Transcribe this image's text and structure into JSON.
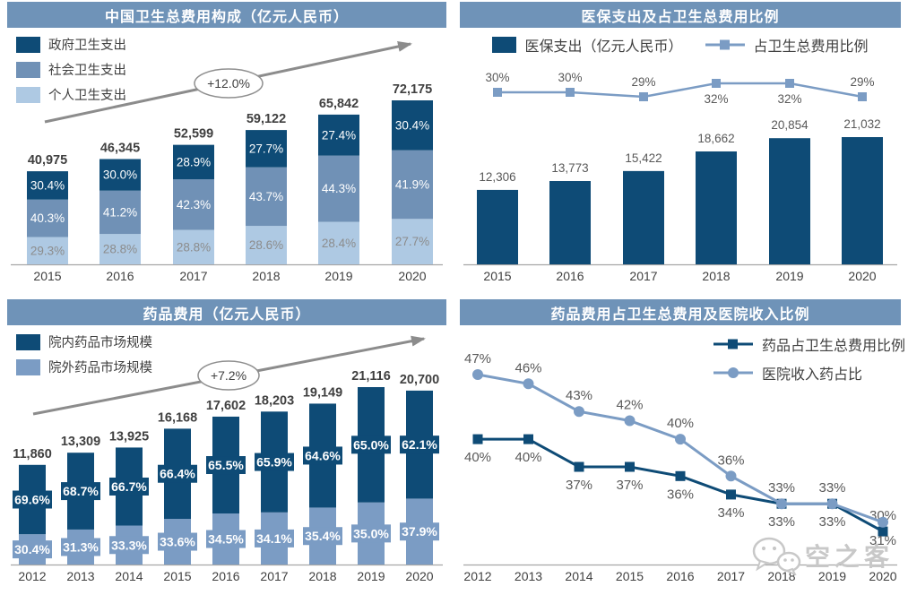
{
  "colors": {
    "navy": "#0e4b76",
    "mid": "#7091b6",
    "light": "#aec9e3",
    "steel": "#7b9cc4",
    "titlebar": "#6f93b8",
    "gray_text": "#595959",
    "dark_text": "#404040",
    "light_pct_text": "#8c8c8c",
    "axis": "#a6a6a6",
    "arrow": "#8c8c8c",
    "watermark": "#c8c8c8"
  },
  "watermark": {
    "text": "空之客",
    "icon": "wechat-chat-bubbles-icon"
  },
  "panels": [
    {
      "id": "health-expenditure-composition",
      "title": "中国卫生总费用构成（亿元人民币）",
      "legend": [
        {
          "label": "政府卫生支出",
          "marker": "swatch",
          "color_key": "navy"
        },
        {
          "label": "社会卫生支出",
          "marker": "swatch",
          "color_key": "mid"
        },
        {
          "label": "个人卫生支出",
          "marker": "swatch",
          "color_key": "light"
        }
      ],
      "chart_data": {
        "type": "bar",
        "stacked": true,
        "unit": "亿元人民币",
        "categories": [
          "2015",
          "2016",
          "2017",
          "2018",
          "2019",
          "2020"
        ],
        "totals": [
          40975,
          46345,
          52599,
          59122,
          65842,
          72175
        ],
        "series": [
          {
            "name": "政府卫生支出",
            "color_key": "navy",
            "pct": [
              30.4,
              30.0,
              28.9,
              27.7,
              27.4,
              30.4
            ]
          },
          {
            "name": "社会卫生支出",
            "color_key": "mid",
            "pct": [
              40.3,
              41.2,
              42.3,
              43.7,
              44.3,
              41.9
            ]
          },
          {
            "name": "个人卫生支出",
            "color_key": "light",
            "pct": [
              29.3,
              28.8,
              28.8,
              28.6,
              28.4,
              27.7
            ]
          }
        ],
        "growth_annotation": "+12.0%",
        "legend_position": "top-left",
        "grid": false
      }
    },
    {
      "id": "medical-insurance-expenditure",
      "title": "医保支出及占卫生总费用比例",
      "legend": [
        {
          "label": "医保支出（亿元人民币）",
          "marker": "swatch",
          "color_key": "navy"
        },
        {
          "label": "占卫生总费用比例",
          "marker": "line-square",
          "color_key": "steel"
        }
      ],
      "chart_data": {
        "type": "bar+line",
        "categories": [
          "2015",
          "2016",
          "2017",
          "2018",
          "2019",
          "2020"
        ],
        "bars": {
          "name": "医保支出（亿元人民币）",
          "color_key": "navy",
          "values": [
            12306,
            13773,
            15422,
            18662,
            20854,
            21032
          ]
        },
        "line": {
          "name": "占卫生总费用比例",
          "color_key": "steel",
          "values": [
            30,
            30,
            29,
            32,
            32,
            29
          ],
          "label_sides": [
            "above",
            "above",
            "above",
            "below",
            "below",
            "above"
          ]
        },
        "legend_position": "top-center",
        "grid": false
      }
    },
    {
      "id": "drug-expenses",
      "title": "药品费用（亿元人民币）",
      "legend": [
        {
          "label": "院内药品市场规模",
          "marker": "swatch",
          "color_key": "navy"
        },
        {
          "label": "院外药品市场规模",
          "marker": "swatch",
          "color_key": "steel"
        }
      ],
      "chart_data": {
        "type": "bar",
        "stacked": true,
        "unit": "亿元人民币",
        "categories": [
          "2012",
          "2013",
          "2014",
          "2015",
          "2016",
          "2017",
          "2018",
          "2019",
          "2020"
        ],
        "totals": [
          11860,
          13309,
          13925,
          16168,
          17602,
          18203,
          19149,
          21116,
          20700
        ],
        "series": [
          {
            "name": "院内药品市场规模",
            "color_key": "navy",
            "pct": [
              69.6,
              68.7,
              66.7,
              66.4,
              65.5,
              65.9,
              64.6,
              65.0,
              62.1
            ]
          },
          {
            "name": "院外药品市场规模",
            "color_key": "steel",
            "pct": [
              30.4,
              31.3,
              33.3,
              33.6,
              34.5,
              34.1,
              35.4,
              35.0,
              37.9
            ]
          }
        ],
        "growth_annotation": "+7.2%",
        "legend_position": "top-left",
        "grid": false
      }
    },
    {
      "id": "drug-share-ratios",
      "title": "药品费用占卫生总费用及医院收入比例",
      "legend": [
        {
          "label": "药品占卫生总费用比例",
          "marker": "line-square",
          "color_key": "navy"
        },
        {
          "label": "医院收入药占比",
          "marker": "line-circle",
          "color_key": "steel"
        }
      ],
      "chart_data": {
        "type": "line",
        "categories": [
          "2012",
          "2013",
          "2014",
          "2015",
          "2016",
          "2017",
          "2018",
          "2019",
          "2020"
        ],
        "series": [
          {
            "name": "药品占卫生总费用比例",
            "color_key": "navy",
            "marker": "square",
            "values": [
              40,
              40,
              37,
              37,
              36,
              34,
              33,
              33,
              30
            ],
            "label_sides": [
              "below",
              "below",
              "below",
              "below",
              "below",
              "below",
              "below",
              "above",
              "above"
            ]
          },
          {
            "name": "医院收入药占比",
            "color_key": "steel",
            "marker": "circle",
            "values": [
              47,
              46,
              43,
              42,
              40,
              36,
              33,
              33,
              31
            ],
            "label_sides": [
              "above",
              "above",
              "above",
              "above",
              "above",
              "above",
              "above",
              "below",
              "below"
            ]
          }
        ],
        "legend_position": "top-right",
        "grid": false
      }
    }
  ]
}
